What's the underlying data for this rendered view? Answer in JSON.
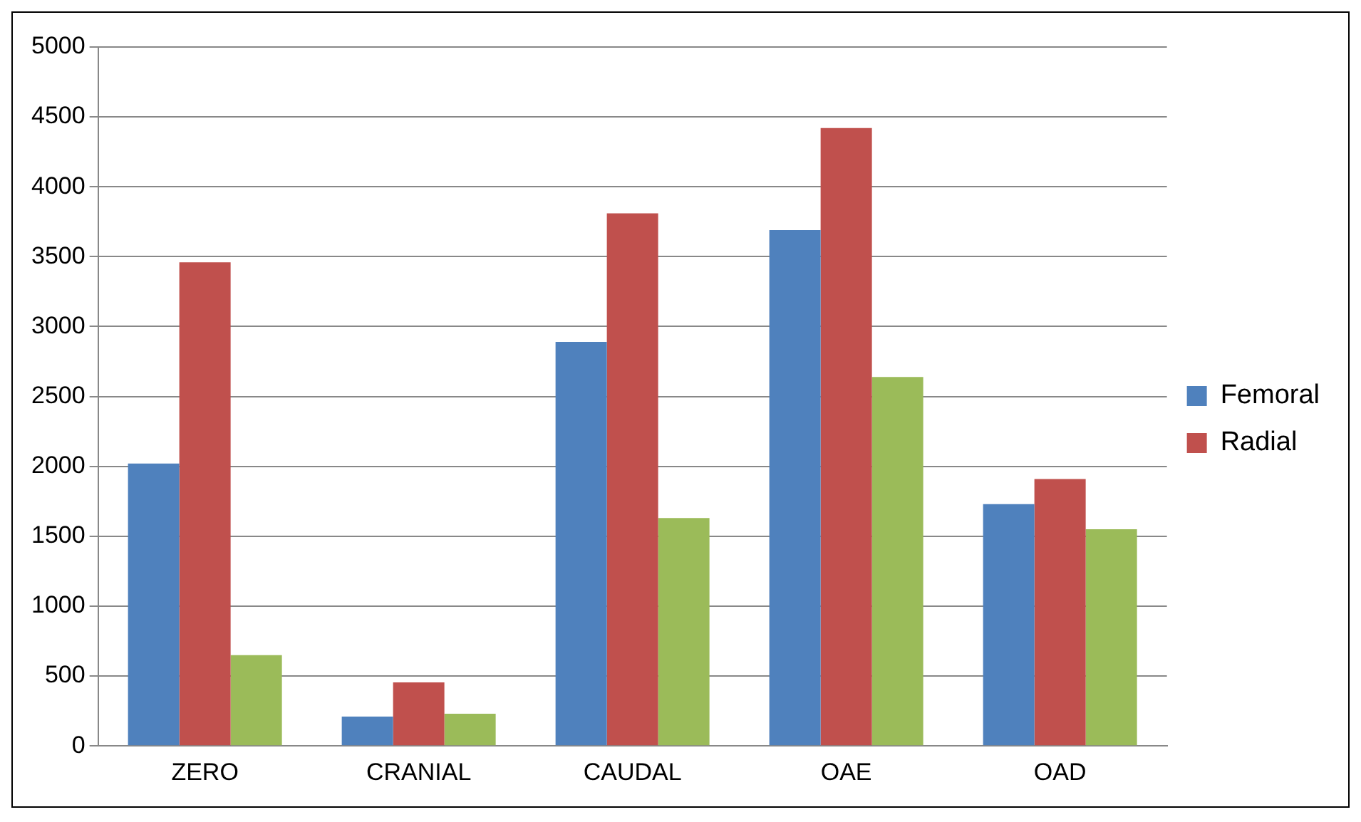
{
  "chart_data": {
    "type": "bar",
    "categories": [
      "ZERO",
      "CRANIAL",
      "CAUDAL",
      "OAE",
      "OAD"
    ],
    "series": [
      {
        "name": "Femoral",
        "color": "#4f81bd",
        "values": [
          2020,
          210,
          2890,
          3690,
          1730
        ]
      },
      {
        "name": "Radial",
        "color": "#c0504d",
        "values": [
          3460,
          455,
          3810,
          4420,
          1910
        ]
      },
      {
        "color": "#9bbb59",
        "values": [
          650,
          230,
          1630,
          2640,
          1550
        ]
      }
    ],
    "ylim": [
      0,
      5000
    ],
    "yticks": [
      0,
      500,
      1000,
      1500,
      2000,
      2500,
      3000,
      3500,
      4000,
      4500,
      5000
    ],
    "grid": "y",
    "legend": "right"
  }
}
